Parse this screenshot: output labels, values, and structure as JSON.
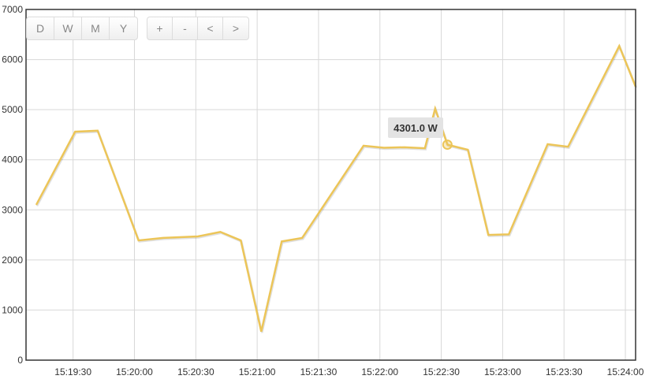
{
  "toolbar": {
    "range_buttons": [
      "D",
      "W",
      "M",
      "Y"
    ],
    "nav_buttons": [
      "+",
      "-",
      "<",
      ">"
    ]
  },
  "tooltip": {
    "text": "4301.0 W"
  },
  "colors": {
    "line": "#ecc558",
    "highlight": "#ecc558",
    "grid": "#d8d8d8",
    "frame": "#333333"
  },
  "chart_data": {
    "type": "line",
    "title": "",
    "xlabel": "",
    "ylabel": "",
    "ylim": [
      0,
      7000
    ],
    "xlim": [
      "15:19:07",
      "15:24:05"
    ],
    "yticks": [
      "0",
      "1000",
      "2000",
      "3000",
      "4000",
      "5000",
      "6000",
      "7000"
    ],
    "xticks": [
      "15:19:30",
      "15:20:00",
      "15:20:30",
      "15:21:00",
      "15:21:30",
      "15:22:00",
      "15:22:30",
      "15:23:00",
      "15:23:30",
      "15:24:00"
    ],
    "grid": true,
    "series": [
      {
        "x": [
          "15:19:12",
          "15:19:31",
          "15:19:42",
          "15:20:02",
          "15:20:14",
          "15:20:31",
          "15:20:42",
          "15:20:52",
          "15:21:02",
          "15:21:12",
          "15:21:22",
          "15:21:52",
          "15:22:02",
          "15:22:12",
          "15:22:22",
          "15:22:27",
          "15:22:33",
          "15:22:43",
          "15:22:53",
          "15:23:03",
          "15:23:22",
          "15:23:32",
          "15:23:57",
          "15:24:05"
        ],
        "values": [
          3100,
          4560,
          4580,
          2390,
          2440,
          2470,
          2560,
          2390,
          570,
          2370,
          2440,
          4280,
          4240,
          4250,
          4230,
          5020,
          4301,
          4200,
          2500,
          2510,
          4310,
          4260,
          6270,
          5460
        ]
      }
    ],
    "highlight": {
      "x": "15:22:33",
      "value": 4301,
      "label": "4301.0 W"
    }
  }
}
